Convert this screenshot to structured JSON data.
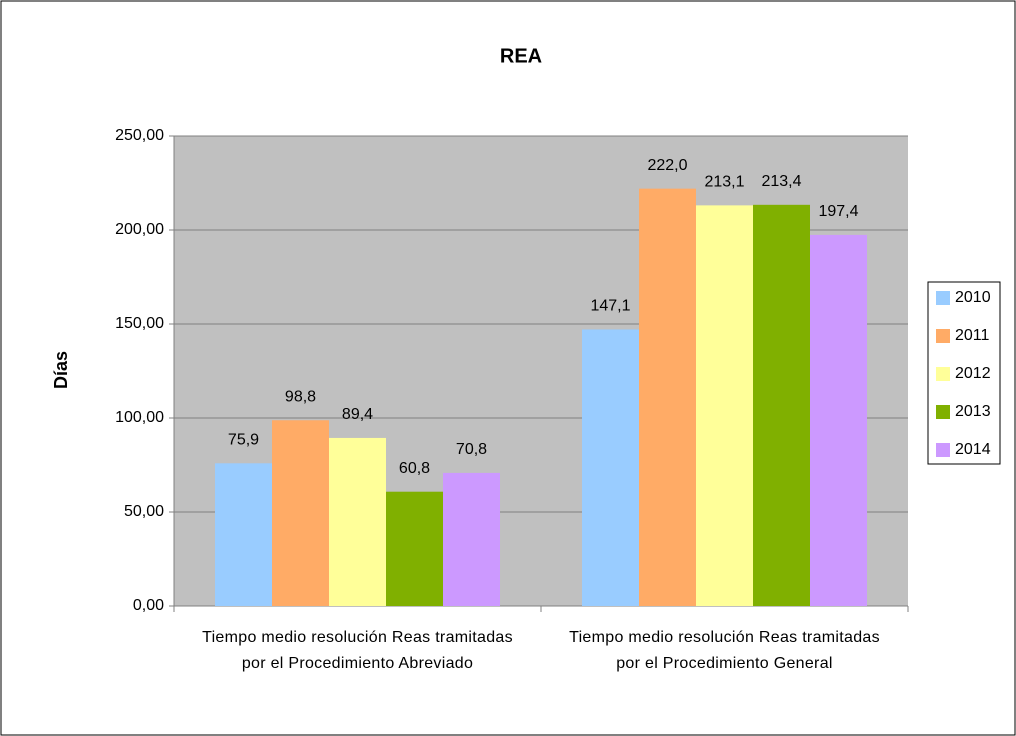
{
  "chart_data": {
    "type": "bar",
    "title": "REA",
    "y_label": "Días",
    "categories": [
      "Tiempo medio resolución Reas tramitadas por el Procedimiento Abreviado",
      "Tiempo medio resolución Reas tramitadas por el Procedimiento General"
    ],
    "series": [
      {
        "name": "2010",
        "color": "#99ccff",
        "values": [
          75.9,
          147.1
        ],
        "value_labels": [
          "75,9",
          "147,1"
        ]
      },
      {
        "name": "2011",
        "color": "#ffab66",
        "values": [
          98.8,
          222.0
        ],
        "value_labels": [
          "98,8",
          "222,0"
        ]
      },
      {
        "name": "2012",
        "color": "#ffff99",
        "values": [
          89.4,
          213.1
        ],
        "value_labels": [
          "89,4",
          "213,1"
        ]
      },
      {
        "name": "2013",
        "color": "#80b000",
        "values": [
          60.8,
          213.4
        ],
        "value_labels": [
          "60,8",
          "213,4"
        ]
      },
      {
        "name": "2014",
        "color": "#cc99ff",
        "values": [
          70.8,
          197.4
        ],
        "value_labels": [
          "70,8",
          "197,4"
        ]
      }
    ],
    "ylim": [
      0,
      250
    ],
    "yticks": [
      {
        "value": 0,
        "label": "0,00"
      },
      {
        "value": 50,
        "label": "50,00"
      },
      {
        "value": 100,
        "label": "100,00"
      },
      {
        "value": 150,
        "label": "150,00"
      },
      {
        "value": 200,
        "label": "200,00"
      },
      {
        "value": 250,
        "label": "250,00"
      }
    ],
    "grid": true,
    "legend": "right"
  }
}
